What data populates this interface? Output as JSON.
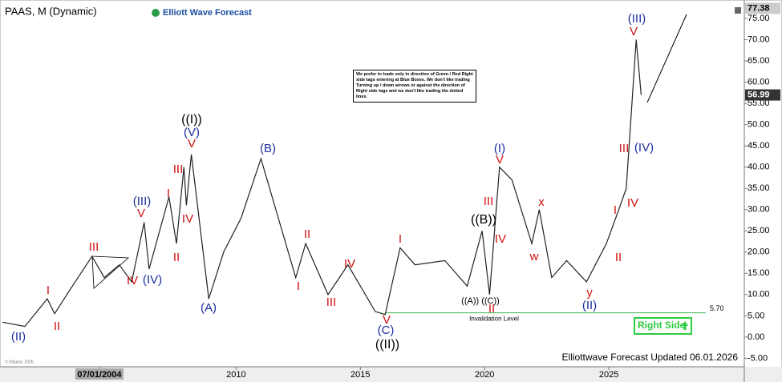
{
  "chart_data": {
    "type": "line",
    "title": "PAAS, M (Dynamic)",
    "brand": "Elliott Wave Forecast",
    "note": "We prefer to trade only in direction of Green / Red Right side tags entering at Blue Boxes. We don't like trading Turning up / down arrows or against the direction of Right side tags and we don't like trading the dotted lines.",
    "footer": "Elliottwave Forecast Updated 06.01.2026",
    "copyright": "© eSignal, 2026",
    "signal": "Right Side",
    "x": [
      2000.6,
      2001.5,
      2002.4,
      2002.7,
      2003.3,
      2004.2,
      2004.7,
      2005.3,
      2005.8,
      2006.3,
      2006.5,
      2007.3,
      2007.6,
      2007.9,
      2008.0,
      2008.2,
      2008.9,
      2009.5,
      2010.2,
      2011.0,
      2011.6,
      2012.4,
      2012.8,
      2013.7,
      2014.5,
      2015.6,
      2016.0,
      2016.6,
      2017.2,
      2018.4,
      2019.3,
      2019.9,
      2020.2,
      2020.6,
      2021.1,
      2021.9,
      2022.2,
      2022.7,
      2023.3,
      2024.1,
      2024.9,
      2025.4,
      2025.7,
      2026.1,
      2026.3
    ],
    "series": [
      {
        "name": "PAAS",
        "color": "#222222",
        "values": [
          3.5,
          2.5,
          9,
          5.5,
          11,
          19,
          14,
          17,
          13,
          27,
          16,
          33,
          22,
          40,
          31,
          43,
          9,
          20,
          28,
          42,
          30,
          14,
          22,
          10,
          17,
          6,
          5.3,
          21,
          17,
          18,
          12,
          25,
          10,
          40,
          37,
          22,
          30,
          14,
          18,
          13,
          22,
          30,
          35,
          70,
          56.99
        ]
      }
    ],
    "xlim": [
      2000.5,
      2030.45
    ],
    "ylim": [
      -7,
      78.4
    ],
    "xticks": [
      {
        "value": 2004.5,
        "label": "07/01/2004"
      },
      2010,
      2015,
      2020,
      2025
    ],
    "yticks": [
      {
        "value": -5,
        "label": "-5.00"
      },
      {
        "value": 0,
        "label": "0.00"
      },
      {
        "value": 5,
        "label": "5.00"
      },
      {
        "value": 10,
        "label": "10.00"
      },
      {
        "value": 15,
        "label": "15.00"
      },
      {
        "value": 20,
        "label": "20.00"
      },
      {
        "value": 25,
        "label": "25.00"
      },
      {
        "value": 30,
        "label": "30.00"
      },
      {
        "value": 35,
        "label": "35.00"
      },
      {
        "value": 40,
        "label": "40.00"
      },
      {
        "value": 45,
        "label": "45.00"
      },
      {
        "value": 50,
        "label": "50.00"
      },
      {
        "value": 55,
        "label": "55.00"
      },
      {
        "value": 60,
        "label": "60.00"
      },
      {
        "value": 65,
        "label": "65.00"
      },
      {
        "value": 70,
        "label": "70.00"
      },
      {
        "value": 75,
        "label": "75.00"
      }
    ],
    "axis_markers": [
      {
        "value": 77.38,
        "label": "77.38"
      },
      {
        "value": 56.99,
        "label": "56.99"
      }
    ],
    "invalidation": {
      "label": "Invalidation Level",
      "value": 5.7,
      "value_label": "5.70",
      "color": "#3cb44b"
    },
    "annotations": [
      {
        "text": "(II)",
        "color": "#1a2fa0"
      },
      {
        "text": "I",
        "color": "#d01010"
      },
      {
        "text": "II",
        "color": "#d01010"
      },
      {
        "text": "III",
        "color": "#d01010"
      },
      {
        "text": "IV",
        "color": "#d01010"
      },
      {
        "text": "(IV)",
        "color": "#1a2fa0"
      },
      {
        "text": "(III)",
        "color": "#1a2fa0"
      },
      {
        "text": "V",
        "color": "#d01010"
      },
      {
        "text": "I",
        "color": "#d01010"
      },
      {
        "text": "II",
        "color": "#d01010"
      },
      {
        "text": "III",
        "color": "#d01010"
      },
      {
        "text": "IV",
        "color": "#d01010"
      },
      {
        "text": "V",
        "color": "#d01010"
      },
      {
        "text": "(V)",
        "color": "#1a2fa0"
      },
      {
        "text": "((I))",
        "color": "#000000"
      },
      {
        "text": "(A)",
        "color": "#1a2fa0"
      },
      {
        "text": "(B)",
        "color": "#1a2fa0"
      },
      {
        "text": "II",
        "color": "#d01010"
      },
      {
        "text": "I",
        "color": "#d01010"
      },
      {
        "text": "III",
        "color": "#d01010"
      },
      {
        "text": "IV",
        "color": "#d01010"
      },
      {
        "text": "V",
        "color": "#d01010"
      },
      {
        "text": "(C)",
        "color": "#1a2fa0"
      },
      {
        "text": "((II))",
        "color": "#000000"
      },
      {
        "text": "I",
        "color": "#d01010"
      },
      {
        "text": "((B))",
        "color": "#000000"
      },
      {
        "text": "III",
        "color": "#d01010"
      },
      {
        "text": "IV",
        "color": "#d01010"
      },
      {
        "text": "(I)",
        "color": "#1a2fa0"
      },
      {
        "text": "V",
        "color": "#d01010"
      },
      {
        "text": "((A)) ((C))",
        "color": "#000000"
      },
      {
        "text": "II",
        "color": "#d01010"
      },
      {
        "text": "x",
        "color": "#d01010"
      },
      {
        "text": "w",
        "color": "#d01010"
      },
      {
        "text": "y",
        "color": "#d01010"
      },
      {
        "text": "(II)",
        "color": "#1a2fa0"
      },
      {
        "text": "I",
        "color": "#d01010"
      },
      {
        "text": "II",
        "color": "#d01010"
      },
      {
        "text": "III",
        "color": "#d01010"
      },
      {
        "text": "(IV)",
        "color": "#1a2fa0"
      },
      {
        "text": "IV",
        "color": "#d01010"
      },
      {
        "text": "V",
        "color": "#d01010"
      },
      {
        "text": "(III)",
        "color": "#1a2fa0"
      }
    ]
  }
}
